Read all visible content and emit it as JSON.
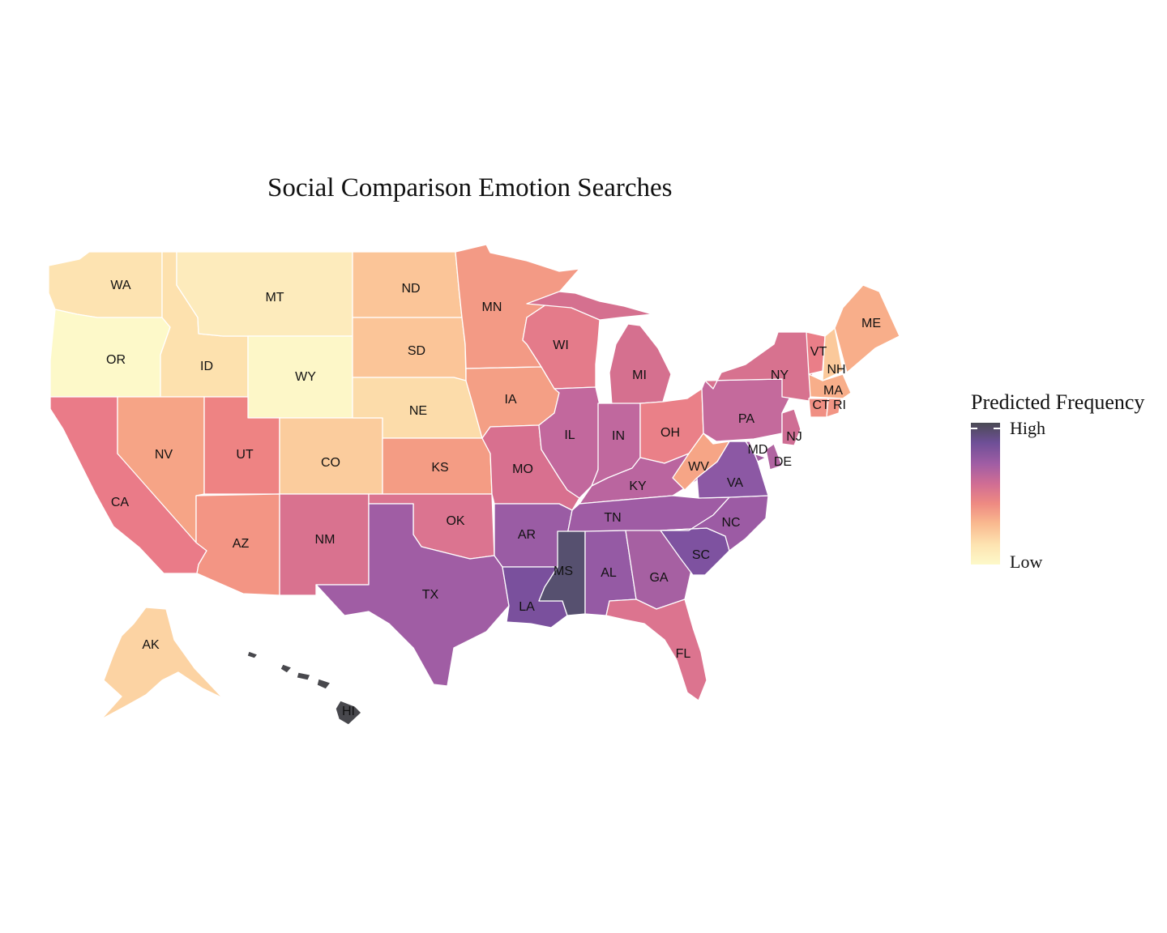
{
  "map": {
    "title": "Social Comparison Emotion Searches",
    "legend": {
      "title": "Predicted Frequency",
      "high_label": "High",
      "low_label": "Low",
      "scale_colors": [
        "#4a4a54",
        "#6e4f97",
        "#a05da4",
        "#d06d94",
        "#ee8a82",
        "#f9b98f",
        "#fde3b1",
        "#fdf9c9"
      ]
    },
    "states": [
      {
        "abbr": "WA",
        "level": 0.1,
        "color": "#fde3b1"
      },
      {
        "abbr": "OR",
        "level": 0.02,
        "color": "#fdf9c9"
      },
      {
        "abbr": "CA",
        "level": 0.55,
        "color": "#ea7b88"
      },
      {
        "abbr": "ID",
        "level": 0.12,
        "color": "#fde1ae"
      },
      {
        "abbr": "NV",
        "level": 0.38,
        "color": "#f6a486"
      },
      {
        "abbr": "MT",
        "level": 0.06,
        "color": "#fdebbc"
      },
      {
        "abbr": "WY",
        "level": 0.03,
        "color": "#fdf7c8"
      },
      {
        "abbr": "UT",
        "level": 0.5,
        "color": "#ee8383"
      },
      {
        "abbr": "AZ",
        "level": 0.45,
        "color": "#f39584"
      },
      {
        "abbr": "CO",
        "level": 0.22,
        "color": "#fbcc9d"
      },
      {
        "abbr": "NM",
        "level": 0.62,
        "color": "#d9728f"
      },
      {
        "abbr": "ND",
        "level": 0.25,
        "color": "#fbc598"
      },
      {
        "abbr": "SD",
        "level": 0.25,
        "color": "#fbc598"
      },
      {
        "abbr": "NE",
        "level": 0.15,
        "color": "#fcdcaa"
      },
      {
        "abbr": "KS",
        "level": 0.4,
        "color": "#f49c84"
      },
      {
        "abbr": "OK",
        "level": 0.62,
        "color": "#db7490"
      },
      {
        "abbr": "TX",
        "level": 0.78,
        "color": "#a05da4"
      },
      {
        "abbr": "MN",
        "level": 0.4,
        "color": "#f39a85"
      },
      {
        "abbr": "IA",
        "level": 0.38,
        "color": "#f49f85"
      },
      {
        "abbr": "MO",
        "level": 0.62,
        "color": "#d8708f"
      },
      {
        "abbr": "AR",
        "level": 0.8,
        "color": "#9a5ca4"
      },
      {
        "abbr": "LA",
        "level": 0.88,
        "color": "#7a509d"
      },
      {
        "abbr": "WI",
        "level": 0.55,
        "color": "#e47b8a"
      },
      {
        "abbr": "IL",
        "level": 0.72,
        "color": "#c2689d"
      },
      {
        "abbr": "MI",
        "level": 0.62,
        "color": "#d5708f"
      },
      {
        "abbr": "IN",
        "level": 0.72,
        "color": "#c0689e"
      },
      {
        "abbr": "OH",
        "level": 0.52,
        "color": "#ea8088"
      },
      {
        "abbr": "KY",
        "level": 0.74,
        "color": "#ba659f"
      },
      {
        "abbr": "TN",
        "level": 0.8,
        "color": "#9f5ca4"
      },
      {
        "abbr": "MS",
        "level": 1.0,
        "color": "#56506f"
      },
      {
        "abbr": "AL",
        "level": 0.82,
        "color": "#955aa4"
      },
      {
        "abbr": "GA",
        "level": 0.78,
        "color": "#a660a2"
      },
      {
        "abbr": "FL",
        "level": 0.62,
        "color": "#dc748f"
      },
      {
        "abbr": "SC",
        "level": 0.9,
        "color": "#7e52a0"
      },
      {
        "abbr": "NC",
        "level": 0.82,
        "color": "#9c5ba4"
      },
      {
        "abbr": "VA",
        "level": 0.84,
        "color": "#8c58a4"
      },
      {
        "abbr": "WV",
        "level": 0.36,
        "color": "#f6a586"
      },
      {
        "abbr": "MD",
        "level": 0.78,
        "color": "#a45fa3"
      },
      {
        "abbr": "DE",
        "level": 0.76,
        "color": "#b064a1"
      },
      {
        "abbr": "PA",
        "level": 0.7,
        "color": "#c46a9c"
      },
      {
        "abbr": "NJ",
        "level": 0.66,
        "color": "#cf6e94"
      },
      {
        "abbr": "NY",
        "level": 0.64,
        "color": "#d7728f"
      },
      {
        "abbr": "CT",
        "level": 0.46,
        "color": "#f08f83"
      },
      {
        "abbr": "RI",
        "level": 0.44,
        "color": "#f29584"
      },
      {
        "abbr": "MA",
        "level": 0.34,
        "color": "#f8ae8a"
      },
      {
        "abbr": "VT",
        "level": 0.54,
        "color": "#ea7e88"
      },
      {
        "abbr": "NH",
        "level": 0.24,
        "color": "#fbc99b"
      },
      {
        "abbr": "ME",
        "level": 0.34,
        "color": "#f8ae8a"
      },
      {
        "abbr": "AK",
        "level": 0.2,
        "color": "#fcd3a3"
      },
      {
        "abbr": "HI",
        "level": 1.0,
        "color": "#48484d"
      }
    ]
  }
}
